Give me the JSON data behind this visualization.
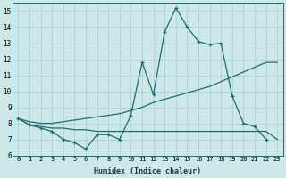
{
  "xlabel": "Humidex (Indice chaleur)",
  "bg_color": "#cde8e8",
  "grid_color": "#aacccc",
  "line_color": "#1a6e6e",
  "xlim": [
    -0.5,
    23.5
  ],
  "ylim": [
    6,
    15.5
  ],
  "yticks": [
    6,
    7,
    8,
    9,
    10,
    11,
    12,
    13,
    14,
    15
  ],
  "xticks": [
    0,
    1,
    2,
    3,
    4,
    5,
    6,
    7,
    8,
    9,
    10,
    11,
    12,
    13,
    14,
    15,
    16,
    17,
    18,
    19,
    20,
    21,
    22,
    23
  ],
  "line1_x": [
    0,
    1,
    2,
    3,
    4,
    5,
    6,
    7,
    8,
    9,
    10,
    11,
    12,
    13,
    14,
    15,
    16,
    17,
    18,
    19,
    20,
    21,
    22
  ],
  "line1_y": [
    8.3,
    7.9,
    7.7,
    7.5,
    7.0,
    6.8,
    6.4,
    7.3,
    7.3,
    7.0,
    8.5,
    11.8,
    9.8,
    13.7,
    15.2,
    14.0,
    13.1,
    12.9,
    13.0,
    9.7,
    8.0,
    7.8,
    7.0
  ],
  "line2_x": [
    0,
    1,
    2,
    3,
    4,
    5,
    6,
    7,
    8,
    9,
    10,
    11,
    12,
    13,
    14,
    15,
    16,
    17,
    18,
    19,
    20,
    21,
    22,
    23
  ],
  "line2_y": [
    8.3,
    8.1,
    8.0,
    8.0,
    8.1,
    8.2,
    8.3,
    8.4,
    8.5,
    8.6,
    8.8,
    9.0,
    9.3,
    9.5,
    9.7,
    9.9,
    10.1,
    10.3,
    10.6,
    10.9,
    11.2,
    11.5,
    11.8,
    11.8
  ],
  "line3_x": [
    0,
    1,
    2,
    3,
    4,
    5,
    6,
    7,
    8,
    9,
    10,
    11,
    12,
    13,
    14,
    15,
    16,
    17,
    18,
    19,
    20,
    21,
    22,
    23
  ],
  "line3_y": [
    8.3,
    7.9,
    7.8,
    7.7,
    7.7,
    7.6,
    7.6,
    7.5,
    7.5,
    7.5,
    7.5,
    7.5,
    7.5,
    7.5,
    7.5,
    7.5,
    7.5,
    7.5,
    7.5,
    7.5,
    7.5,
    7.5,
    7.5,
    7.0
  ]
}
